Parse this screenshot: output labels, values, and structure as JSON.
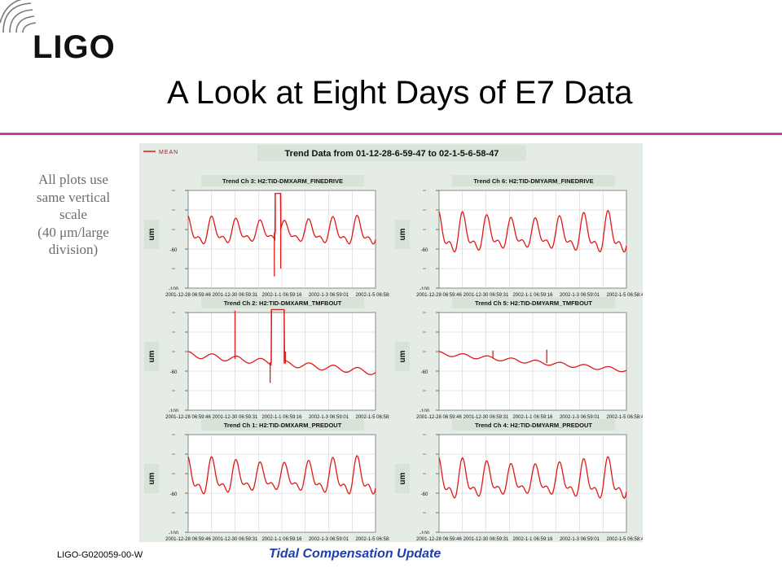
{
  "slide": {
    "title": "A Look at Eight Days of E7 Data",
    "logo_text": "LIGO",
    "side_note": [
      "All plots use",
      "same vertical",
      "scale",
      "(40 μm/large",
      "division)"
    ],
    "footer_left": "LIGO-G020059-00-W",
    "footer_center": "Tidal Compensation Update",
    "accent_color": "#c23ab0",
    "footer_color": "#1f3fb0"
  },
  "chart_data": {
    "type": "line",
    "title": "Trend Data from 01-12-28-6-59-47 to 02-1-5-6-58-47",
    "legend": {
      "label": "MEAN",
      "placement": "top-left"
    },
    "line_color": "#e01818",
    "ylabel": "um",
    "yticks": [
      "",
      "",
      "",
      "-60",
      "",
      "-100"
    ],
    "ylim": [
      -100,
      0
    ],
    "xticks": [
      "2001-12-28 06:59:46",
      "2001-12-30 06:59:31",
      "2002-1-1 06:59:16",
      "2002-1-3 06:59:01",
      "2002-1-5 06:58:46"
    ],
    "xlim_days": [
      0,
      8
    ],
    "grid": true,
    "layout": "3 rows x 2 columns",
    "panels": [
      {
        "title": "Trend Ch 3: H2:TID-DMXARM_FINEDRIVE",
        "pattern": "tidal",
        "base": -43,
        "amp": 18,
        "trend": 0,
        "events": [
          {
            "type": "spike",
            "t": 3.68,
            "y": -88
          },
          {
            "type": "block",
            "t0": 3.72,
            "t1": 3.95,
            "y": -3
          },
          {
            "type": "spike",
            "t": 3.95,
            "y": -80
          }
        ]
      },
      {
        "title": "Trend Ch 6: H2:TID-DMYARM_FINEDRIVE",
        "pattern": "tidal",
        "base": -46,
        "amp": 26,
        "trend": 0,
        "events": []
      },
      {
        "title": "Trend Ch 2: H2:TID-DMXARM_TMFBOUT",
        "pattern": "drift",
        "base": -43,
        "amp": 3,
        "trend": -18,
        "events": [
          {
            "type": "spike",
            "t": 2.0,
            "y": 2
          },
          {
            "type": "block",
            "t0": 3.55,
            "t1": 4.1,
            "y": 3
          },
          {
            "type": "drop",
            "t": 3.5,
            "y": -72
          },
          {
            "type": "spike",
            "t": 4.15,
            "y": -40
          }
        ]
      },
      {
        "title": "Trend Ch 5: H2:TID-DMYARM_TMFBOUT",
        "pattern": "drift",
        "base": -42,
        "amp": 2,
        "trend": -17,
        "events": [
          {
            "type": "spike",
            "t": 2.3,
            "y": -39
          },
          {
            "type": "spike",
            "t": 4.6,
            "y": -38
          }
        ]
      },
      {
        "title": "Trend Ch 1: H2:TID-DMXARM_PREDOUT",
        "pattern": "tidal",
        "base": -45,
        "amp": 24,
        "trend": 0,
        "events": []
      },
      {
        "title": "Trend Ch 4: H2:TID-DMYARM_PREDOUT",
        "pattern": "tidal",
        "base": -48,
        "amp": 26,
        "trend": 0,
        "events": []
      }
    ]
  }
}
